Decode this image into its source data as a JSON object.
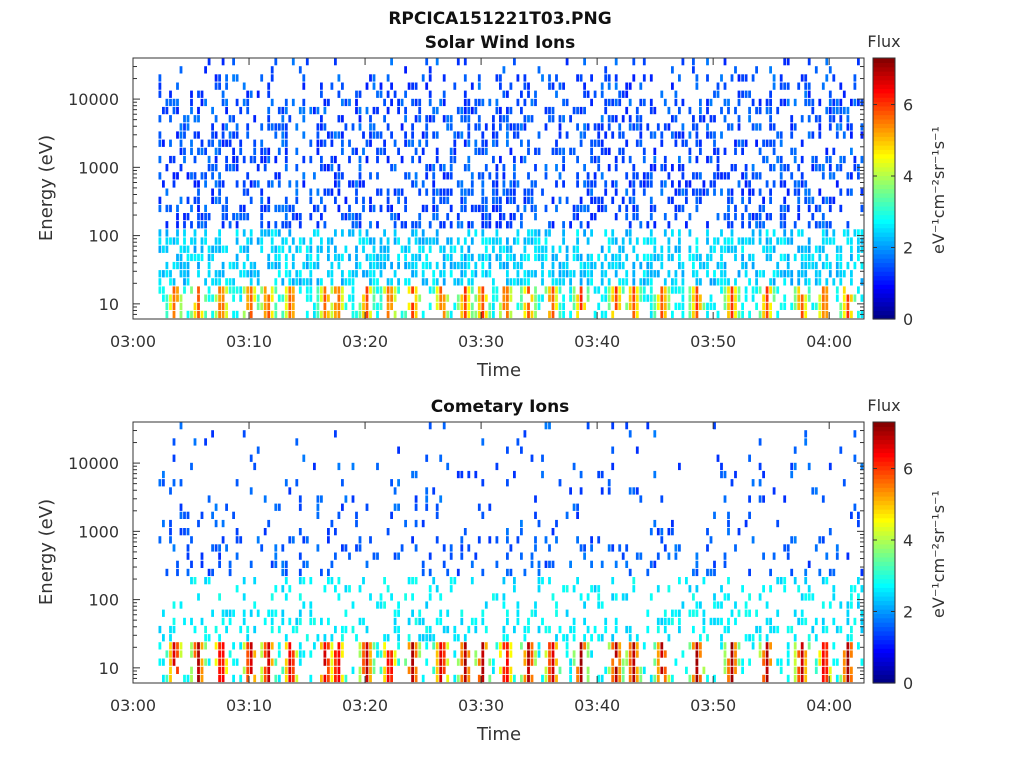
{
  "figure": {
    "title": "RPCICA151221T03.PNG"
  },
  "colors": {
    "axis": "#333333"
  },
  "chart_data": [
    {
      "type": "heatmap",
      "title": "Solar Wind Ions",
      "xlabel": "Time",
      "ylabel": "Energy (eV)",
      "x_ticks": [
        "03:00",
        "03:10",
        "03:20",
        "03:30",
        "03:40",
        "03:50",
        "04:00"
      ],
      "x_range_minutes": [
        0,
        63
      ],
      "y_scale": "log",
      "y_ticks": [
        "10",
        "100",
        "1000",
        "10000"
      ],
      "y_range": [
        6,
        40000
      ],
      "colorbar": {
        "title": "Flux",
        "label": "eV⁻¹cm⁻²sr⁻¹s⁻¹",
        "ticks": [
          "0",
          "2",
          "4",
          "6"
        ],
        "range": [
          0,
          7.3
        ],
        "colormap": "jet"
      },
      "data_start_minute": 2.2,
      "grid": false
    },
    {
      "type": "heatmap",
      "title": "Cometary Ions",
      "xlabel": "Time",
      "ylabel": "Energy (eV)",
      "x_ticks": [
        "03:00",
        "03:10",
        "03:20",
        "03:30",
        "03:40",
        "03:50",
        "04:00"
      ],
      "x_range_minutes": [
        0,
        63
      ],
      "y_scale": "log",
      "y_ticks": [
        "10",
        "100",
        "1000",
        "10000"
      ],
      "y_range": [
        6,
        40000
      ],
      "colorbar": {
        "title": "Flux",
        "label": "eV⁻¹cm⁻²sr⁻¹s⁻¹",
        "ticks": [
          "0",
          "2",
          "4",
          "6"
        ],
        "range": [
          0,
          7.3
        ],
        "colormap": "jet"
      },
      "data_start_minute": 2.2,
      "grid": false
    }
  ]
}
